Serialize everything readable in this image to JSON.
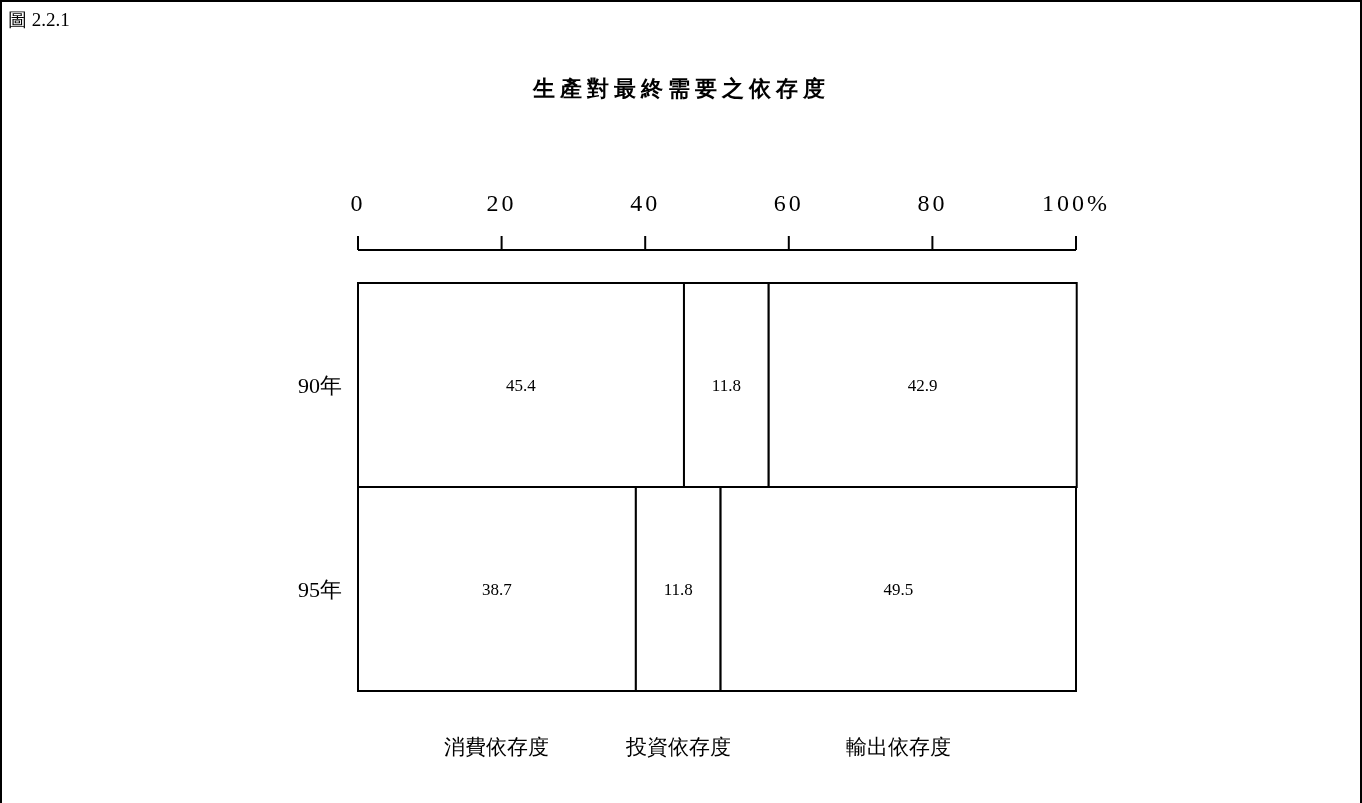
{
  "chart_data": {
    "type": "bar",
    "orientation": "horizontal",
    "stacked": true,
    "title": "生產對最終需要之依存度",
    "annotations": [
      "圖 2.2.1"
    ],
    "categories": [
      "90年",
      "95年"
    ],
    "series": [
      {
        "name": "消費依存度",
        "color": "#ffffff",
        "values": [
          45.4,
          38.7
        ]
      },
      {
        "name": "投資依存度",
        "color": "#ffffff",
        "values": [
          11.8,
          11.8
        ]
      },
      {
        "name": "輸出依存度",
        "color": "#ffffff",
        "values": [
          42.9,
          49.5
        ]
      }
    ],
    "xlim": [
      0,
      100
    ],
    "xticks": [
      0,
      20,
      40,
      60,
      80,
      {
        "value": 100,
        "label": "100%"
      }
    ],
    "data_labels": true,
    "legend": "bottom"
  }
}
